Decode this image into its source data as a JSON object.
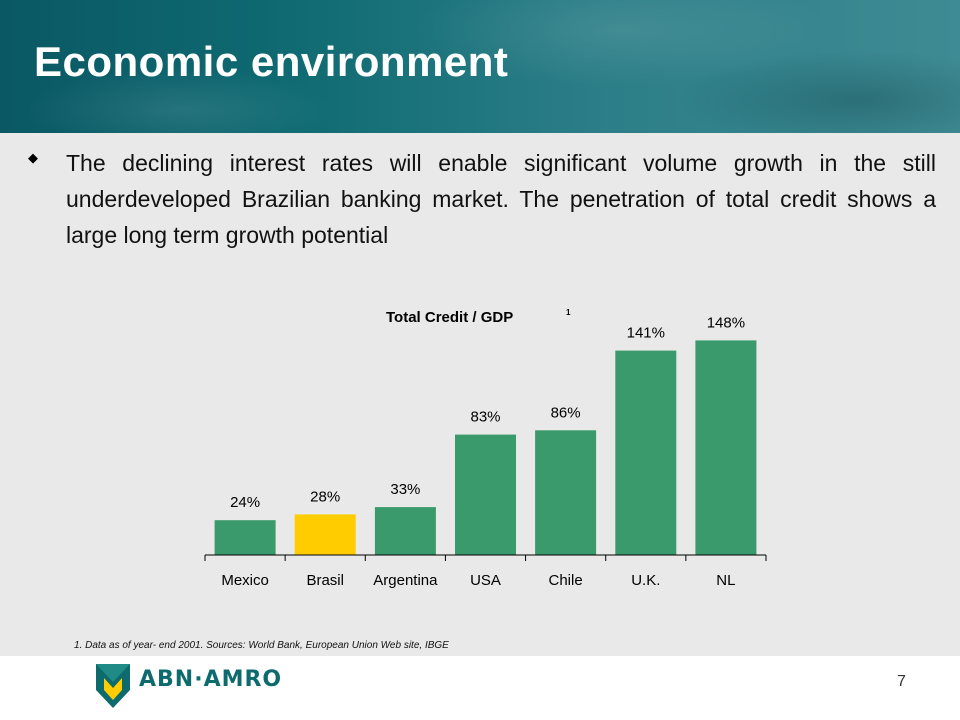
{
  "slide": {
    "title": "Economic environment",
    "bullet": "The declining interest rates will enable significant volume growth in the still underdeveloped Brazilian banking market. The penetration of total credit shows a large long term growth potential",
    "footnote": "1. Data as of year- end 2001. Sources: World Bank, European Union Web site, IBGE",
    "logo_text": "ABN·AMRO",
    "page_number": "7"
  },
  "colors": {
    "bar": "#3a9a6b",
    "highlight_bar": "#ffcc00",
    "header": "#0f6a72",
    "panel": "#e9e9e9"
  },
  "chart_data": {
    "type": "bar",
    "title": "Total Credit / GDP",
    "title_superscript": "1",
    "categories": [
      "Mexico",
      "Brasil",
      "Argentina",
      "USA",
      "Chile",
      "U.K.",
      "NL"
    ],
    "values": [
      24,
      28,
      33,
      83,
      86,
      141,
      148
    ],
    "value_labels": [
      "24%",
      "28%",
      "33%",
      "83%",
      "86%",
      "141%",
      "148%"
    ],
    "unit": "%",
    "highlight_category": "Brasil",
    "ylim": [
      0,
      160
    ],
    "grid": false,
    "legend": "none"
  }
}
